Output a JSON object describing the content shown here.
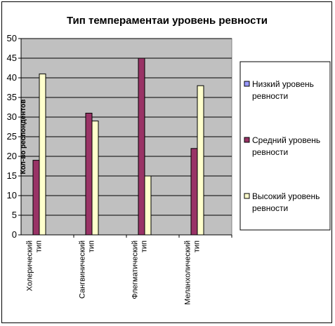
{
  "chart_data": {
    "type": "bar",
    "title": "Тип темпераментаи уровень ревности",
    "ylabel": "Кол-во респондентов",
    "xlabel": "",
    "ylim": [
      0,
      50
    ],
    "yticks": [
      "0",
      "5",
      "10",
      "15",
      "20",
      "25",
      "30",
      "35",
      "40",
      "45",
      "50"
    ],
    "grid": true,
    "legend_position": "right",
    "categories": [
      [
        "Холерический",
        "тип"
      ],
      [
        "Сангвинический",
        "тип"
      ],
      [
        "Флегматический",
        "тип"
      ],
      [
        "Меланхолический",
        "тип"
      ]
    ],
    "series": [
      {
        "name": [
          "Низкий уровень",
          "ревности"
        ],
        "color": "#9999FF",
        "values": [
          0,
          0,
          0,
          0
        ]
      },
      {
        "name": [
          "Средний уровень",
          "ревности"
        ],
        "color": "#993366",
        "values": [
          19,
          31,
          45,
          22
        ]
      },
      {
        "name": [
          "Высокий уровень",
          "ревности"
        ],
        "color": "#FFFFCC",
        "values": [
          41,
          29,
          15,
          38
        ]
      }
    ],
    "plot_background": "#C0C0C0"
  }
}
